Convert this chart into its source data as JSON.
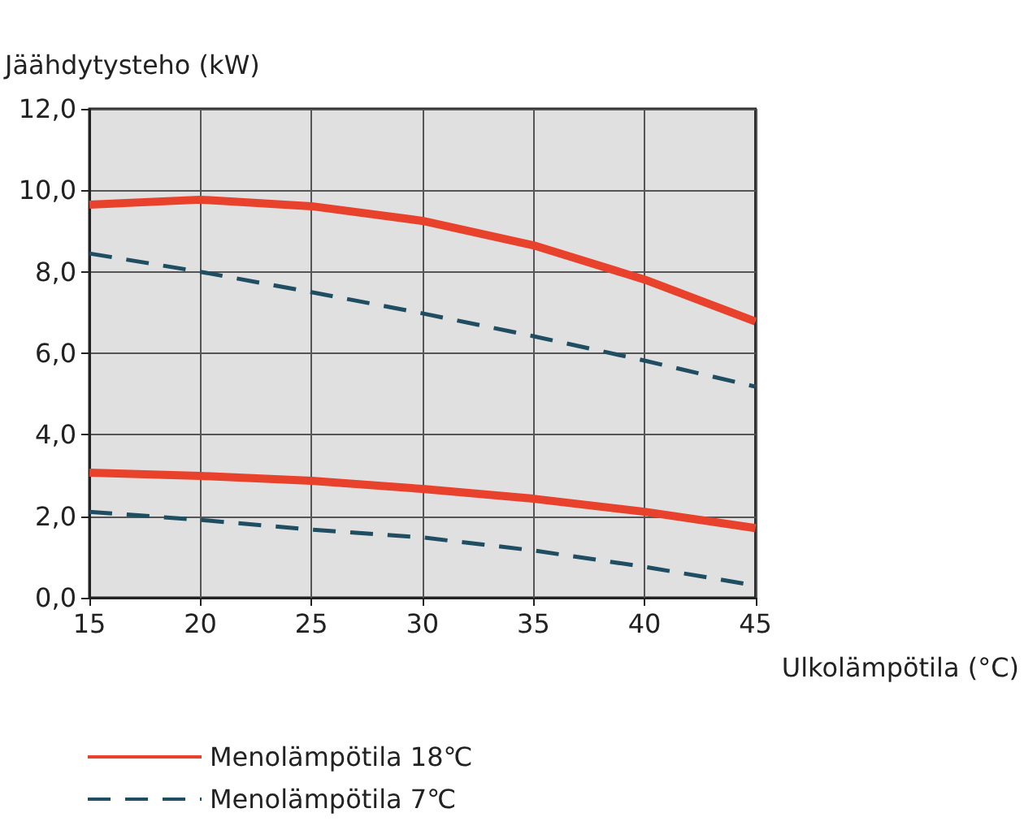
{
  "chart_data": {
    "type": "line",
    "xlabel": "Ulkolämpötila (°C)",
    "ylabel": "Jäähdytysteho (kW)",
    "x": [
      15,
      20,
      25,
      30,
      35,
      40,
      45
    ],
    "series": [
      {
        "name": "Menolämpötila 18℃",
        "color": "#e8412c",
        "line_style": "solid",
        "values": [
          9.65,
          9.77,
          9.61,
          9.25,
          8.65,
          7.81,
          6.78
        ]
      },
      {
        "name": "Menolämpötila 7℃",
        "color": "#1f4e62",
        "line_style": "dashed",
        "values": [
          8.45,
          8.0,
          7.5,
          6.98,
          6.42,
          5.82,
          5.18
        ]
      },
      {
        "color": "#e8412c",
        "line_style": "solid",
        "values": [
          3.07,
          2.99,
          2.87,
          2.67,
          2.43,
          2.11,
          1.71
        ]
      },
      {
        "color": "#1f4e62",
        "line_style": "dashed",
        "values": [
          2.11,
          1.91,
          1.67,
          1.48,
          1.16,
          0.76,
          0.3
        ]
      }
    ],
    "xlim": [
      15,
      45
    ],
    "xticks": [
      15,
      20,
      25,
      30,
      35,
      40,
      45
    ],
    "ylim": [
      0,
      12
    ],
    "yticks": [
      {
        "value": 0,
        "label": "0,0"
      },
      {
        "value": 2,
        "label": "2,0"
      },
      {
        "value": 4,
        "label": "4,0"
      },
      {
        "value": 6,
        "label": "6,0"
      },
      {
        "value": 8,
        "label": "8,0"
      },
      {
        "value": 10,
        "label": "10,0"
      },
      {
        "value": 12,
        "label": "12,0"
      }
    ],
    "grid": true,
    "legend": "bottom left",
    "marker": "none"
  }
}
